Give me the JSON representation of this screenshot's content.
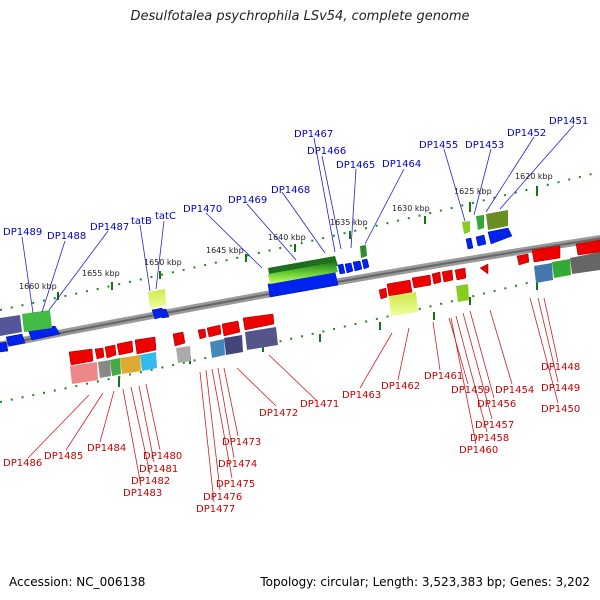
{
  "title": "Desulfotalea psychrophila LSv54, complete genome",
  "footer": {
    "accession": "Accession: NC_006138",
    "summary": "Topology: circular; Length: 3,523,383 bp; Genes: 3,202"
  },
  "scale_labels": [
    "1620 kbp",
    "1625 kbp",
    "1630 kbp",
    "1635 kbp",
    "1640 kbp",
    "1645 kbp",
    "1650 kbp",
    "1655 kbp",
    "1660 kbp"
  ],
  "genes_top": [
    "DP1451",
    "DP1452",
    "DP1453",
    "DP1455",
    "DP1464",
    "DP1465",
    "DP1466",
    "DP1467",
    "DP1468",
    "DP1469",
    "DP1470",
    "tatC",
    "tatB",
    "DP1487",
    "DP1488",
    "DP1489"
  ],
  "genes_bottom": [
    "DP1448",
    "DP1449",
    "DP1450",
    "DP1454",
    "DP1456",
    "DP1457",
    "DP1458",
    "DP1459",
    "DP1460",
    "DP1461",
    "DP1462",
    "DP1463",
    "DP1471",
    "DP1472",
    "DP1473",
    "DP1474",
    "DP1475",
    "DP1476",
    "DP1477",
    "DP1480",
    "DP1481",
    "DP1482",
    "DP1483",
    "DP1484",
    "DP1485",
    "DP1486"
  ],
  "colors": {
    "forward_strand": "#0022ee",
    "reverse_strand": "#ee0000",
    "label_forward": "#0000cc",
    "label_reverse": "#cc0000",
    "backbone": "#777777",
    "tick": "#117711"
  }
}
